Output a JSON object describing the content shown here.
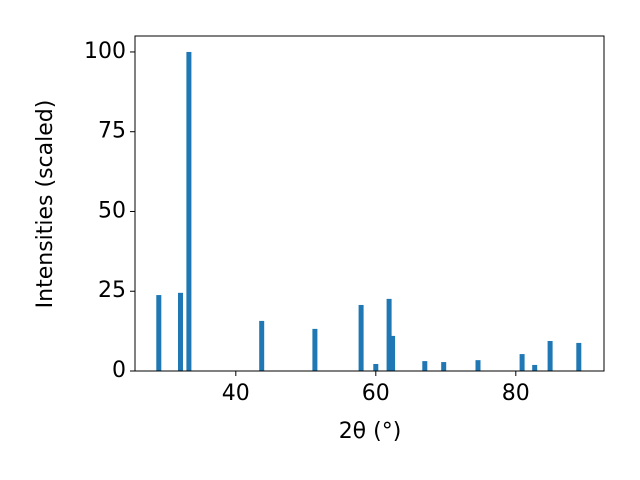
{
  "chart_data": {
    "type": "bar",
    "xlabel": "2θ (°)",
    "ylabel": "Intensities (scaled)",
    "x": [
      29.0,
      32.1,
      33.3,
      43.7,
      51.3,
      57.9,
      60.0,
      61.9,
      62.4,
      67.0,
      69.7,
      74.6,
      80.9,
      82.7,
      84.9,
      89.0
    ],
    "values": [
      23.8,
      24.5,
      100,
      15.7,
      13.2,
      20.7,
      2.2,
      22.6,
      11.0,
      3.1,
      2.8,
      3.4,
      5.3,
      1.9,
      9.4,
      8.8
    ],
    "color": "#1f77b4",
    "xlim": [
      25.6,
      92.6
    ],
    "xticks": [
      40,
      60,
      80
    ],
    "ylim": [
      0,
      105
    ],
    "yticks": [
      0,
      25,
      50,
      75,
      100
    ]
  }
}
